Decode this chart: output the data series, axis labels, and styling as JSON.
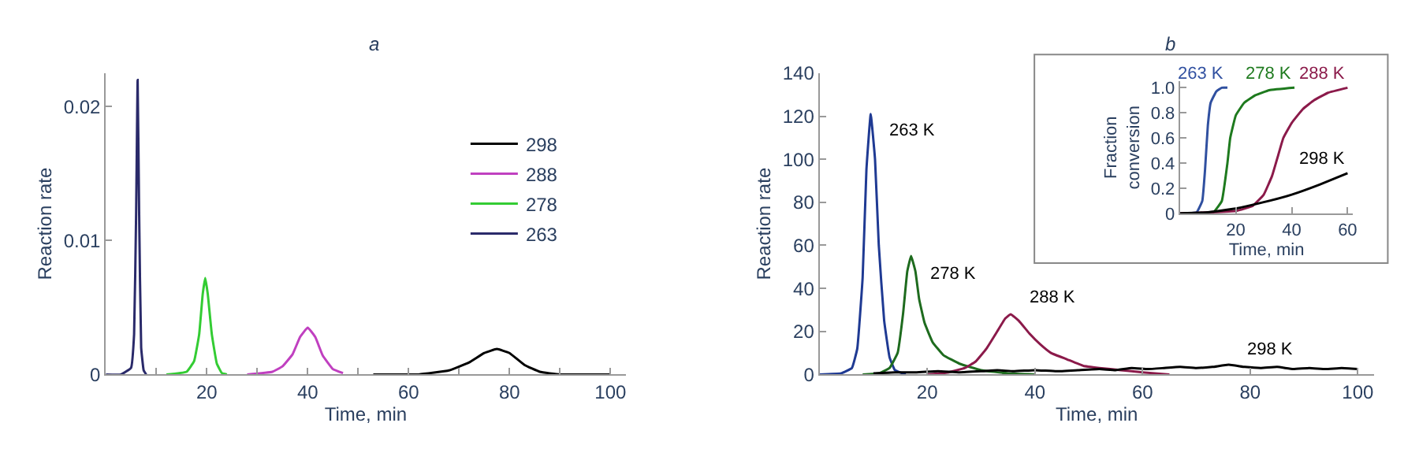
{
  "chart_data": [
    {
      "type": "line",
      "title": "a",
      "xlabel": "Time, min",
      "ylabel": "Reaction rate",
      "xlim": [
        0,
        103
      ],
      "ylim": [
        0,
        0.0225
      ],
      "xticks": [
        {
          "value": 10,
          "label": null
        },
        20,
        {
          "value": 30,
          "label": null
        },
        40,
        {
          "value": 50,
          "label": null
        },
        60,
        {
          "value": 70,
          "label": null
        },
        80,
        {
          "value": 90,
          "label": null
        },
        100
      ],
      "yticks": [
        0,
        0.01,
        0.02
      ],
      "legend": "right",
      "series": [
        {
          "name": "298",
          "color": "#000000",
          "x": [
            53,
            62,
            68,
            72,
            75,
            77.5,
            80,
            83,
            86,
            90,
            100
          ],
          "values": [
            0,
            0,
            0.0003,
            0.0009,
            0.0016,
            0.0019,
            0.0016,
            0.0007,
            0.0002,
            0,
            0
          ]
        },
        {
          "name": "288",
          "color": "#c040c0",
          "x": [
            28,
            33,
            35,
            37,
            38.5,
            40,
            41.5,
            43,
            45,
            47
          ],
          "values": [
            0,
            0.0002,
            0.0006,
            0.0015,
            0.0028,
            0.0035,
            0.0028,
            0.0014,
            0.0004,
            0.0001
          ]
        },
        {
          "name": "278",
          "color": "#33cc33",
          "x": [
            12,
            16,
            17.5,
            18.5,
            19.2,
            19.7,
            20.2,
            21,
            22,
            23,
            24
          ],
          "values": [
            0,
            0.0002,
            0.001,
            0.003,
            0.006,
            0.0072,
            0.006,
            0.003,
            0.0008,
            0.0001,
            0
          ]
        },
        {
          "name": "263",
          "color": "#2a2a6a",
          "x": [
            0,
            3,
            5,
            5.6,
            6,
            6.3,
            6.6,
            7,
            7.5,
            8
          ],
          "values": [
            0,
            0,
            0.0005,
            0.003,
            0.012,
            0.022,
            0.012,
            0.002,
            0.0003,
            0
          ]
        }
      ]
    },
    {
      "type": "line",
      "title": "b",
      "xlabel": "Time, min",
      "ylabel": "Reaction rate",
      "xlim": [
        0,
        103
      ],
      "ylim": [
        0,
        140
      ],
      "xticks": [
        20,
        40,
        60,
        80,
        100
      ],
      "yticks": [
        0,
        20,
        40,
        60,
        80,
        100,
        120,
        140
      ],
      "series": [
        {
          "name": "263 K",
          "color": "#1f3a93",
          "x": [
            0,
            4,
            6,
            7,
            8,
            8.7,
            9.5,
            10.3,
            11,
            12,
            13,
            14,
            16
          ],
          "values": [
            0,
            0.5,
            3,
            12,
            45,
            95,
            121,
            100,
            60,
            25,
            8,
            2,
            0
          ]
        },
        {
          "name": "278 K",
          "color": "#1e6b1e",
          "x": [
            8,
            11,
            13,
            14.5,
            15.5,
            16.3,
            17,
            17.8,
            18.5,
            19.5,
            21,
            23,
            26,
            30,
            35,
            40
          ],
          "values": [
            0,
            0.5,
            3,
            10,
            28,
            48,
            55,
            48,
            35,
            24,
            15,
            9,
            5,
            2,
            0.5,
            0
          ]
        },
        {
          "name": "288 K",
          "color": "#8b1a4a",
          "x": [
            20,
            24,
            27,
            29,
            31,
            33,
            34.5,
            35.5,
            37,
            39,
            41,
            43,
            46,
            49,
            52,
            56,
            60,
            65
          ],
          "values": [
            0,
            1,
            3,
            6,
            12,
            20,
            26,
            28,
            25,
            19,
            14,
            10,
            7,
            4,
            3,
            2,
            1,
            0
          ]
        },
        {
          "name": "298 K",
          "color": "#000000",
          "x": [
            10,
            14,
            18,
            22,
            26,
            30,
            33,
            36,
            40,
            44,
            48,
            52,
            55,
            58,
            61,
            64,
            67,
            70,
            73,
            76,
            79,
            82,
            85,
            88,
            91,
            94,
            97,
            100
          ],
          "values": [
            0.5,
            1,
            1,
            1.5,
            1,
            1.5,
            2,
            1.5,
            2,
            1.5,
            2,
            2.5,
            2,
            3,
            2.5,
            3,
            3.5,
            3,
            3.5,
            4.5,
            3.5,
            3,
            3.5,
            2.5,
            3,
            2.5,
            3,
            2.5
          ]
        }
      ]
    },
    {
      "type": "line",
      "ylabel": "Fraction\nconversion",
      "xlabel": "Time, min",
      "xlim": [
        0,
        62
      ],
      "ylim": [
        0,
        1.05
      ],
      "xticks": [
        20,
        40,
        60
      ],
      "yticks": [
        0,
        {
          "value": 0.2,
          "label": "0.2"
        },
        {
          "value": 0.4,
          "label": "0.4"
        },
        {
          "value": 0.6,
          "label": "0.6"
        },
        {
          "value": 0.8,
          "label": "0.8"
        },
        {
          "value": 1,
          "label": "1.0"
        }
      ],
      "series": [
        {
          "name": "263 K",
          "color": "#3050a0",
          "x": [
            0,
            6,
            8,
            9,
            10,
            11,
            13,
            15,
            17
          ],
          "values": [
            0,
            0.01,
            0.1,
            0.35,
            0.7,
            0.88,
            0.97,
            1,
            1
          ]
        },
        {
          "name": "278 K",
          "color": "#1e7a1e",
          "x": [
            0,
            12,
            15,
            17,
            18,
            20,
            23,
            27,
            32,
            41
          ],
          "values": [
            0,
            0.01,
            0.1,
            0.4,
            0.6,
            0.78,
            0.88,
            0.94,
            0.98,
            1
          ]
        },
        {
          "name": "288 K",
          "color": "#8b1a4a",
          "x": [
            0,
            20,
            26,
            30,
            33,
            35,
            37,
            40,
            44,
            48,
            53,
            60
          ],
          "values": [
            0,
            0.02,
            0.06,
            0.15,
            0.3,
            0.45,
            0.6,
            0.72,
            0.83,
            0.9,
            0.96,
            1
          ]
        },
        {
          "name": "298 K",
          "color": "#000000",
          "x": [
            0,
            10,
            20,
            30,
            40,
            50,
            60
          ],
          "values": [
            0,
            0.01,
            0.04,
            0.09,
            0.15,
            0.23,
            0.32
          ]
        }
      ]
    }
  ]
}
